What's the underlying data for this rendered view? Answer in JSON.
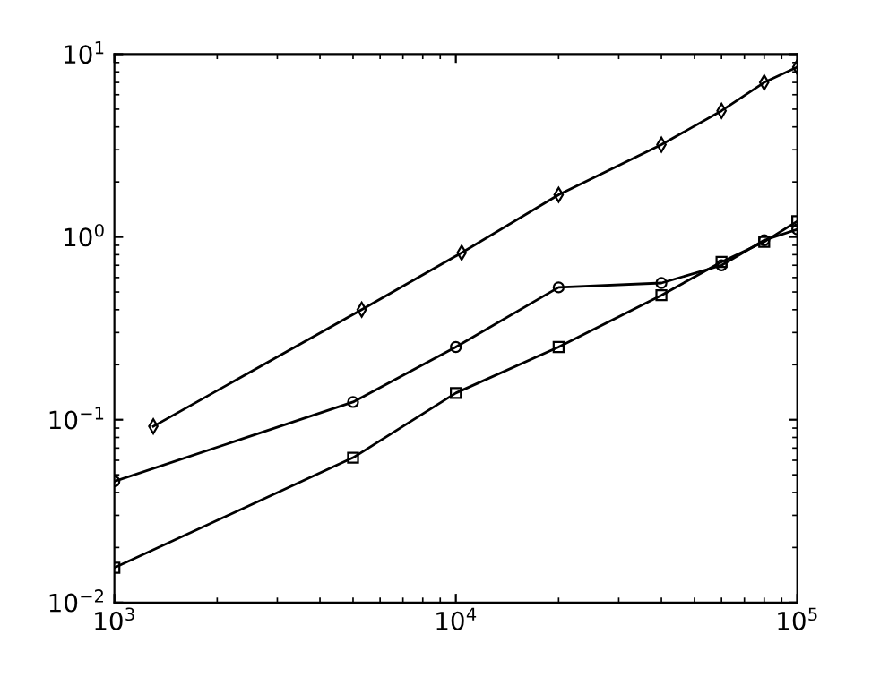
{
  "chart_data": {
    "type": "line",
    "log": "xy",
    "grid": false,
    "legend": false,
    "xlim": [
      1000,
      100000
    ],
    "ylim": [
      0.01,
      10
    ],
    "xticks": [
      {
        "value": 1000,
        "label": "10$^{3}$"
      },
      {
        "value": 10000,
        "label": "10$^{4}$"
      },
      {
        "value": 100000,
        "label": "10$^{5}$"
      }
    ],
    "yticks": [
      {
        "value": 0.01,
        "label": "10$^{−2}$"
      },
      {
        "value": 0.1,
        "label": "10$^{−1}$"
      },
      {
        "value": 1,
        "label": "10$^{0}$"
      },
      {
        "value": 10,
        "label": "10$^{1}$"
      }
    ],
    "series": [
      {
        "color": "#000000",
        "marker": "diamond",
        "x": [
          1300,
          5300,
          10400,
          20000,
          40000,
          60000,
          80000,
          100000
        ],
        "values": [
          0.092,
          0.4,
          0.82,
          1.7,
          3.2,
          4.9,
          7.0,
          8.5
        ]
      },
      {
        "color": "#000000",
        "marker": "circle",
        "x": [
          1000,
          5000,
          10000,
          20000,
          40000,
          60000,
          80000,
          100000
        ],
        "values": [
          0.046,
          0.125,
          0.25,
          0.53,
          0.56,
          0.7,
          0.96,
          1.1
        ]
      },
      {
        "color": "#000000",
        "marker": "square",
        "x": [
          1000,
          5000,
          10000,
          20000,
          40000,
          60000,
          80000,
          100000
        ],
        "values": [
          0.0155,
          0.062,
          0.14,
          0.25,
          0.48,
          0.73,
          0.94,
          1.22
        ]
      }
    ]
  }
}
